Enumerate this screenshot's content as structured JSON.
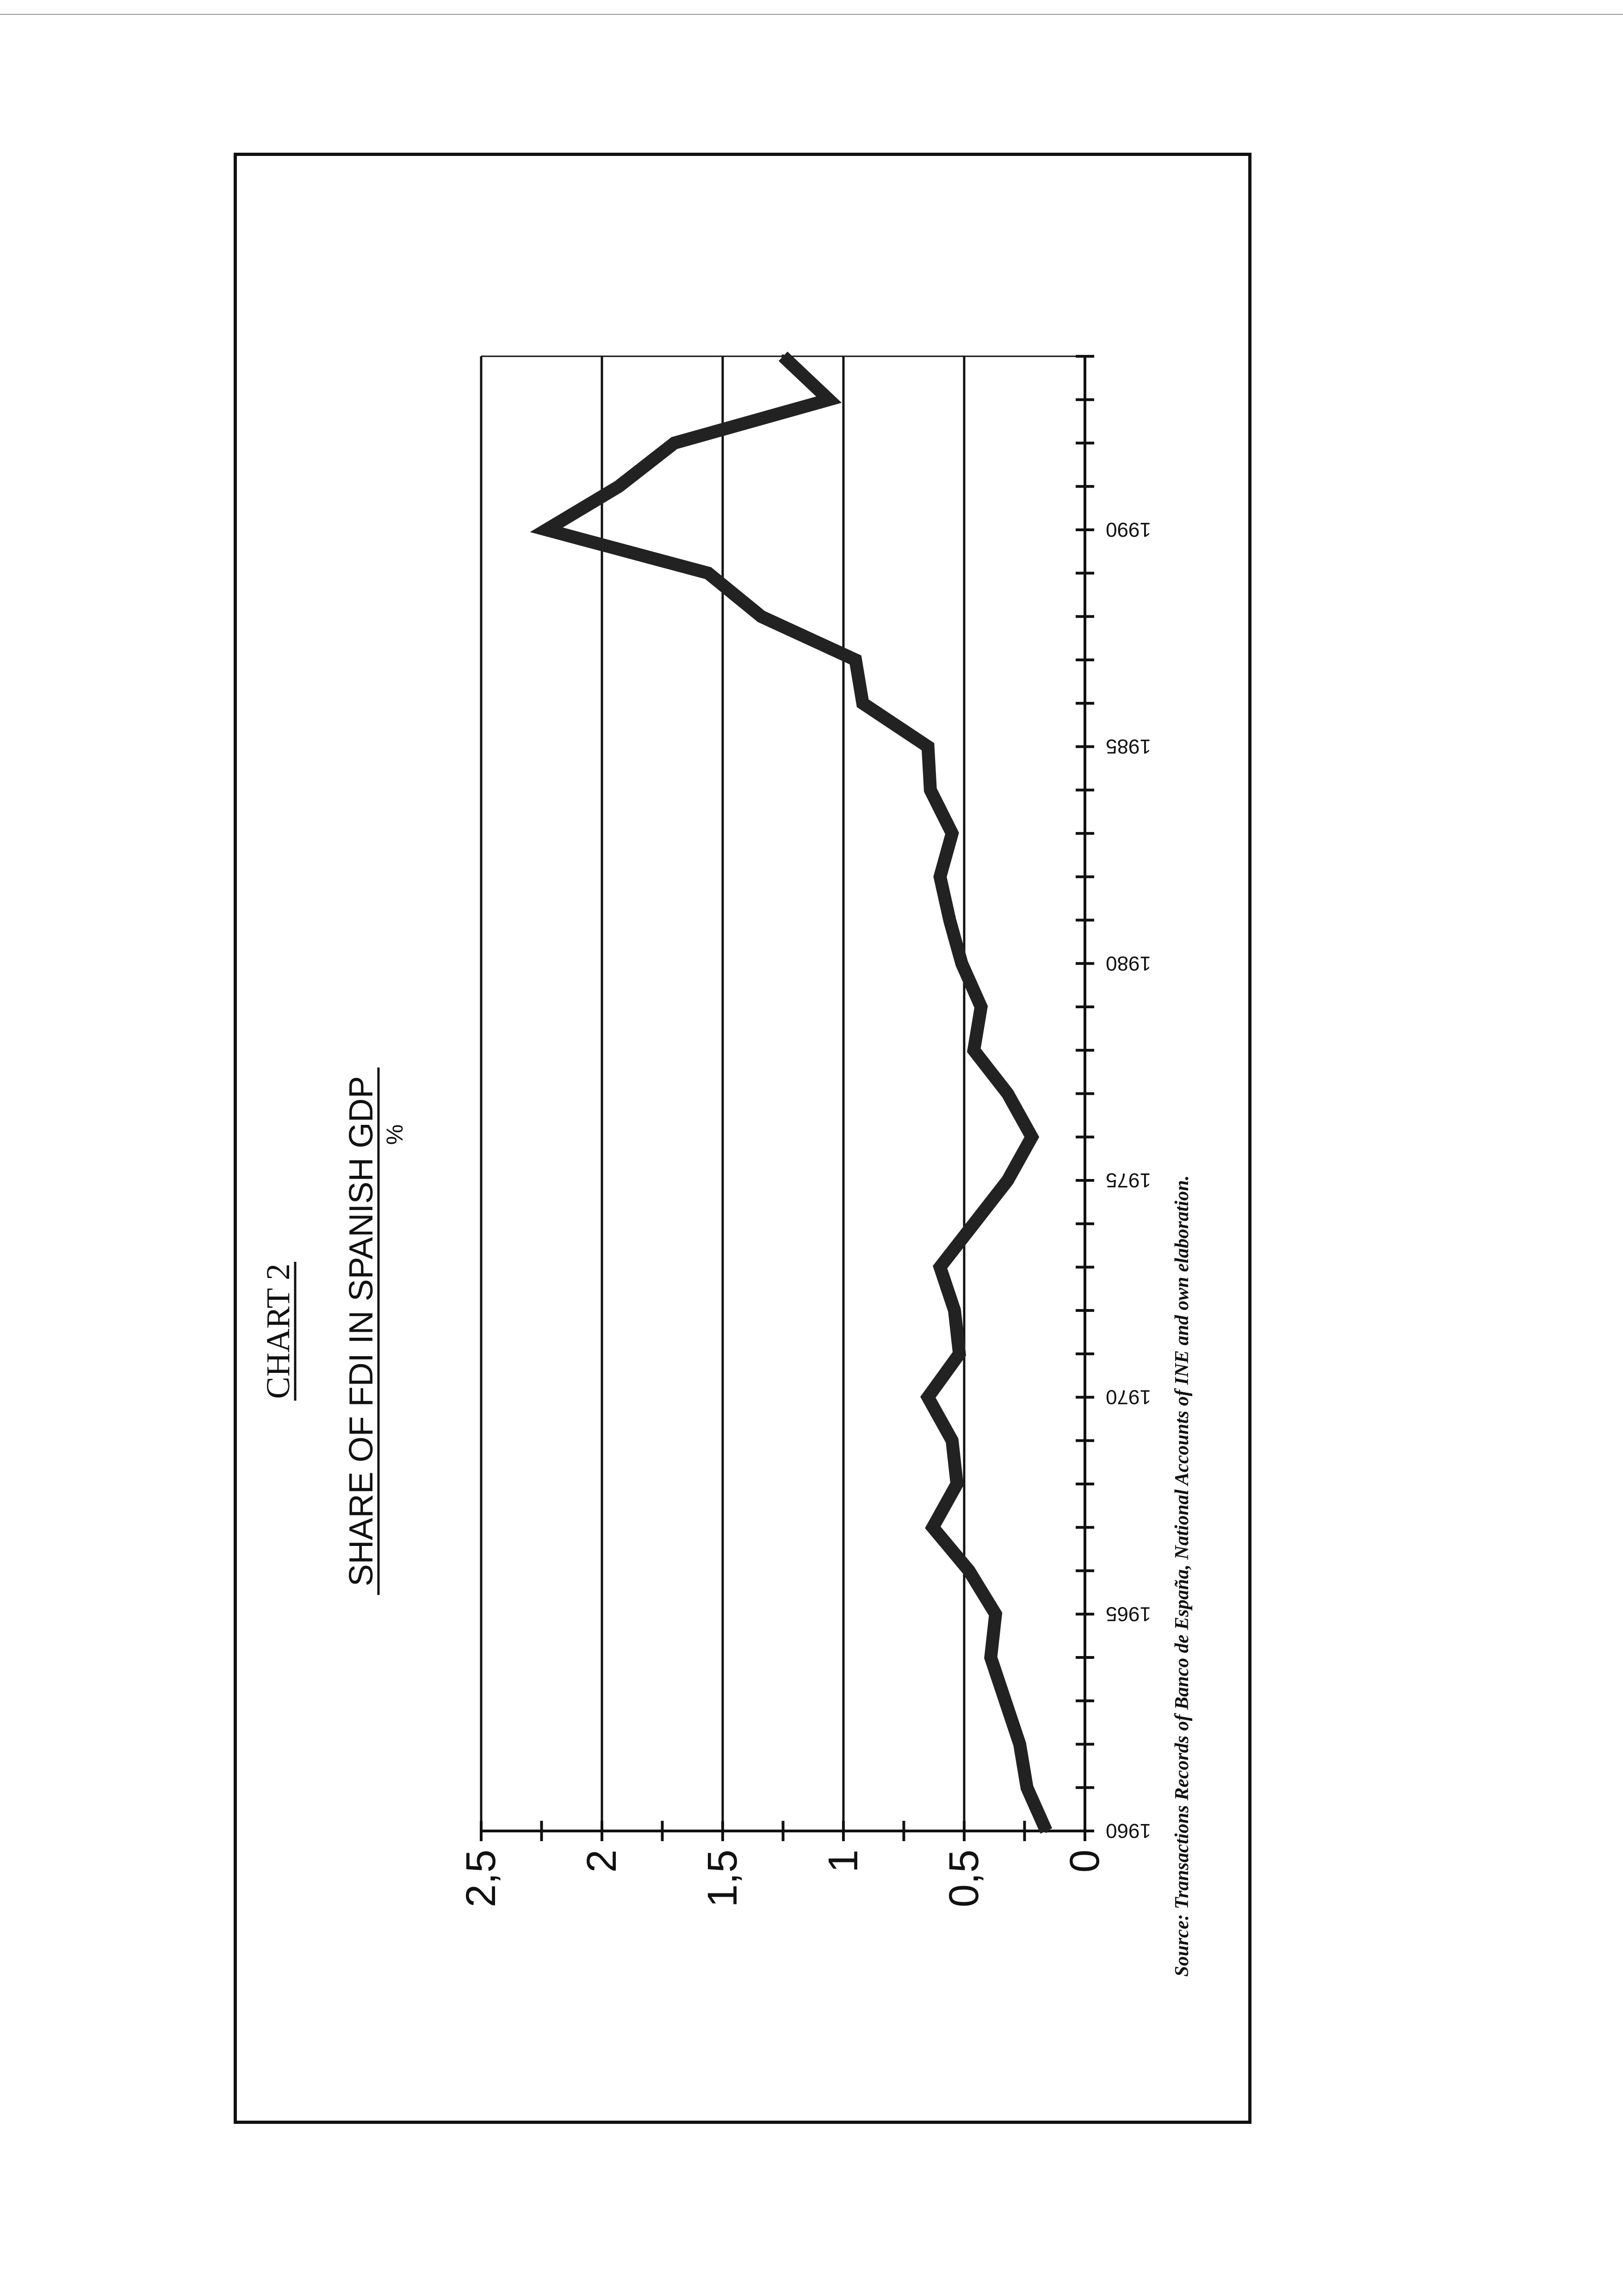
{
  "chart_data": {
    "type": "line",
    "title": "CHART 2",
    "subtitle": "SHARE OF FDI IN SPANISH GDP",
    "unit": "%",
    "source": "Source: Transactions Records of Banco de España, National Accounts of INE and own elaboration.",
    "xlim": [
      1960,
      1994
    ],
    "ylim": [
      0,
      2.5
    ],
    "x_tick_labels": [
      "1960",
      "1965",
      "1970",
      "1975",
      "1980",
      "1985",
      "1990"
    ],
    "y_tick_labels": [
      "0",
      "0,5",
      "1",
      "1,5",
      "2",
      "2,5"
    ],
    "y_tick_values": [
      0,
      0.5,
      1,
      1.5,
      2,
      2.5
    ],
    "grid": true,
    "series": [
      {
        "x": [
          1960,
          1961,
          1962,
          1963,
          1964,
          1965,
          1966,
          1967,
          1968,
          1969,
          1970,
          1971,
          1972,
          1973,
          1974,
          1975,
          1976,
          1977,
          1978,
          1979,
          1980,
          1981,
          1982,
          1983,
          1984,
          1985,
          1986,
          1987,
          1988,
          1989,
          1990,
          1991,
          1992,
          1993,
          1994
        ],
        "values": [
          0.16,
          0.24,
          0.27,
          0.33,
          0.39,
          0.37,
          0.48,
          0.63,
          0.53,
          0.55,
          0.65,
          0.52,
          0.54,
          0.6,
          0.46,
          0.32,
          0.22,
          0.32,
          0.46,
          0.43,
          0.51,
          0.56,
          0.6,
          0.55,
          0.64,
          0.65,
          0.92,
          0.95,
          1.34,
          1.56,
          2.23,
          1.93,
          1.7,
          1.06,
          1.25
        ]
      }
    ]
  }
}
